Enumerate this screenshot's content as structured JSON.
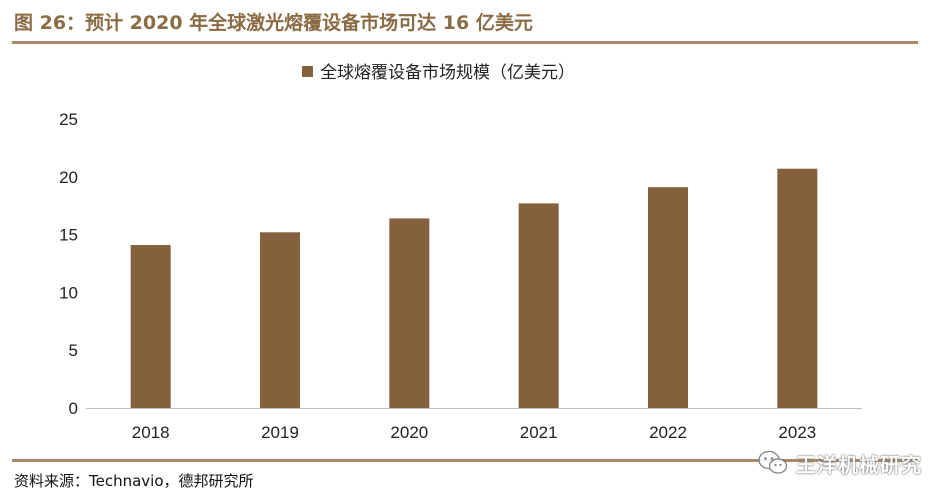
{
  "header": {
    "title": "图 26：预计 2020 年全球激光熔覆设备市场可达 16 亿美元"
  },
  "footer": {
    "source": "资料来源：Technavio，德邦研究所",
    "watermark": "王洋机械研究"
  },
  "colors": {
    "bar": "#84603c",
    "accent": "#a88a67",
    "title": "#8b6b44"
  },
  "icons": {
    "watermark": "wechat-icon"
  },
  "chart_data": {
    "type": "bar",
    "title": "",
    "xlabel": "",
    "ylabel": "",
    "categories": [
      "2018",
      "2019",
      "2020",
      "2021",
      "2022",
      "2023"
    ],
    "series": [
      {
        "name": "全球熔覆设备市场规模（亿美元）",
        "values": [
          14.1,
          15.2,
          16.4,
          17.7,
          19.1,
          20.7
        ]
      }
    ],
    "ylim": [
      0,
      25
    ],
    "yticks": [
      0,
      5,
      10,
      15,
      20,
      25
    ],
    "grid": false,
    "legend": "top-center"
  }
}
